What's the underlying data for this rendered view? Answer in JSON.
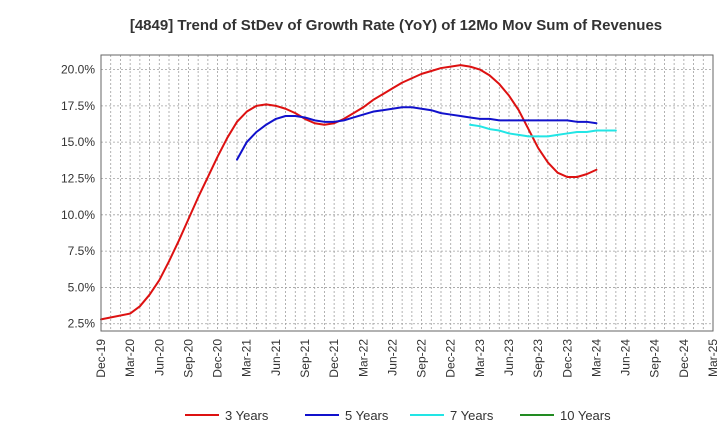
{
  "chart_data": {
    "type": "line",
    "title": "[4849]  Trend of StDev of Growth Rate (YoY) of 12Mo Mov Sum of Revenues",
    "xlabel": "",
    "ylabel": "",
    "ylim": [
      2.0,
      21.0
    ],
    "y_ticks": [
      2.5,
      5.0,
      7.5,
      10.0,
      12.5,
      15.0,
      17.5,
      20.0
    ],
    "y_tick_labels": [
      "2.5%",
      "5.0%",
      "7.5%",
      "10.0%",
      "12.5%",
      "15.0%",
      "17.5%",
      "20.0%"
    ],
    "x_ticks": [
      0,
      3,
      6,
      9,
      12,
      15,
      18,
      21,
      24,
      27,
      30,
      33,
      36,
      39,
      42,
      45,
      48,
      51,
      54,
      57,
      60,
      63
    ],
    "x_tick_labels": [
      "Dec-19",
      "Mar-20",
      "Jun-20",
      "Sep-20",
      "Dec-20",
      "Mar-21",
      "Jun-21",
      "Sep-21",
      "Dec-21",
      "Mar-22",
      "Jun-22",
      "Sep-22",
      "Dec-22",
      "Mar-23",
      "Jun-23",
      "Sep-23",
      "Dec-23",
      "Mar-24",
      "Jun-24",
      "Sep-24",
      "Dec-24",
      "Mar-25"
    ],
    "xlim": [
      0,
      63
    ],
    "grid": true,
    "legend_position": "bottom",
    "series": [
      {
        "name": "3 Years",
        "color": "#dd1111",
        "points": [
          [
            0,
            2.8
          ],
          [
            3,
            3.2
          ],
          [
            4,
            3.7
          ],
          [
            5,
            4.5
          ],
          [
            6,
            5.5
          ],
          [
            7,
            6.8
          ],
          [
            8,
            8.2
          ],
          [
            9,
            9.7
          ],
          [
            10,
            11.2
          ],
          [
            11,
            12.6
          ],
          [
            12,
            14.0
          ],
          [
            13,
            15.3
          ],
          [
            14,
            16.4
          ],
          [
            15,
            17.1
          ],
          [
            16,
            17.5
          ],
          [
            17,
            17.6
          ],
          [
            18,
            17.5
          ],
          [
            19,
            17.3
          ],
          [
            20,
            17.0
          ],
          [
            21,
            16.6
          ],
          [
            22,
            16.3
          ],
          [
            23,
            16.2
          ],
          [
            24,
            16.3
          ],
          [
            25,
            16.6
          ],
          [
            26,
            17.0
          ],
          [
            27,
            17.4
          ],
          [
            28,
            17.9
          ],
          [
            29,
            18.3
          ],
          [
            30,
            18.7
          ],
          [
            31,
            19.1
          ],
          [
            32,
            19.4
          ],
          [
            33,
            19.7
          ],
          [
            34,
            19.9
          ],
          [
            35,
            20.1
          ],
          [
            36,
            20.2
          ],
          [
            37,
            20.3
          ],
          [
            38,
            20.2
          ],
          [
            39,
            20.0
          ],
          [
            40,
            19.6
          ],
          [
            41,
            19.0
          ],
          [
            42,
            18.2
          ],
          [
            43,
            17.2
          ],
          [
            44,
            15.9
          ],
          [
            45,
            14.6
          ],
          [
            46,
            13.6
          ],
          [
            47,
            12.9
          ],
          [
            48,
            12.6
          ],
          [
            49,
            12.6
          ],
          [
            50,
            12.8
          ],
          [
            51,
            13.1
          ]
        ]
      },
      {
        "name": "5 Years",
        "color": "#1111cc",
        "points": [
          [
            14,
            13.8
          ],
          [
            15,
            15.0
          ],
          [
            16,
            15.7
          ],
          [
            17,
            16.2
          ],
          [
            18,
            16.6
          ],
          [
            19,
            16.8
          ],
          [
            20,
            16.8
          ],
          [
            21,
            16.7
          ],
          [
            22,
            16.5
          ],
          [
            23,
            16.4
          ],
          [
            24,
            16.4
          ],
          [
            25,
            16.5
          ],
          [
            26,
            16.7
          ],
          [
            27,
            16.9
          ],
          [
            28,
            17.1
          ],
          [
            29,
            17.2
          ],
          [
            30,
            17.3
          ],
          [
            31,
            17.4
          ],
          [
            32,
            17.4
          ],
          [
            33,
            17.3
          ],
          [
            34,
            17.2
          ],
          [
            35,
            17.0
          ],
          [
            36,
            16.9
          ],
          [
            37,
            16.8
          ],
          [
            38,
            16.7
          ],
          [
            39,
            16.6
          ],
          [
            40,
            16.6
          ],
          [
            41,
            16.5
          ],
          [
            42,
            16.5
          ],
          [
            43,
            16.5
          ],
          [
            44,
            16.5
          ],
          [
            45,
            16.5
          ],
          [
            46,
            16.5
          ],
          [
            47,
            16.5
          ],
          [
            48,
            16.5
          ],
          [
            49,
            16.4
          ],
          [
            50,
            16.4
          ],
          [
            51,
            16.3
          ]
        ]
      },
      {
        "name": "7 Years",
        "color": "#22e5e5",
        "points": [
          [
            38,
            16.2
          ],
          [
            39,
            16.1
          ],
          [
            40,
            15.9
          ],
          [
            41,
            15.8
          ],
          [
            42,
            15.6
          ],
          [
            43,
            15.5
          ],
          [
            44,
            15.4
          ],
          [
            45,
            15.4
          ],
          [
            46,
            15.4
          ],
          [
            47,
            15.5
          ],
          [
            48,
            15.6
          ],
          [
            49,
            15.7
          ],
          [
            50,
            15.7
          ],
          [
            51,
            15.8
          ],
          [
            52,
            15.8
          ],
          [
            53,
            15.8
          ]
        ]
      },
      {
        "name": "10 Years",
        "color": "#228b22",
        "points": []
      }
    ]
  }
}
